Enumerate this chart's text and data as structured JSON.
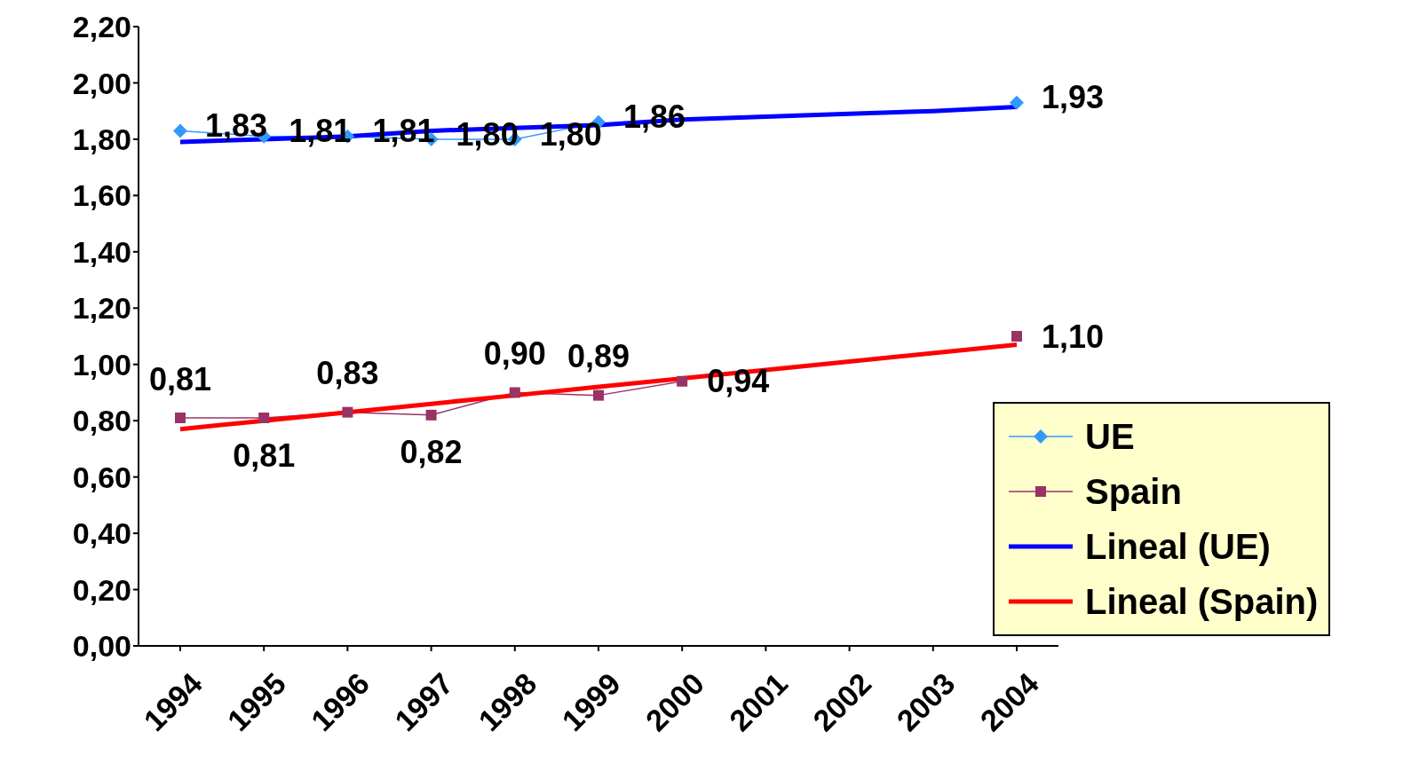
{
  "chart_data": {
    "type": "line",
    "categories": [
      "1994",
      "1995",
      "1996",
      "1997",
      "1998",
      "1999",
      "2000",
      "2001",
      "2002",
      "2003",
      "2004"
    ],
    "series": [
      {
        "name": "UE",
        "color": "#3399ff",
        "marker": "diamond",
        "values": [
          1.83,
          1.81,
          1.81,
          1.8,
          1.8,
          1.86,
          null,
          null,
          null,
          null,
          1.93
        ],
        "value_labels": [
          "1,83",
          "1,81",
          "1,81",
          "1,80",
          "1,80",
          "1,86",
          null,
          null,
          null,
          null,
          "1,93"
        ]
      },
      {
        "name": "Spain",
        "color": "#993366",
        "marker": "square",
        "values": [
          0.81,
          0.81,
          0.83,
          0.82,
          0.9,
          0.89,
          0.94,
          null,
          null,
          null,
          1.1
        ],
        "value_labels": [
          "0,81",
          "0,81",
          "0,83",
          "0,82",
          "0,90",
          "0,89",
          "0,94",
          null,
          null,
          null,
          "1,10"
        ]
      },
      {
        "name": "Lineal (UE)",
        "color": "#0000ff",
        "marker": "none",
        "values": [
          1.79,
          1.8,
          1.81,
          1.83,
          1.84,
          1.85,
          1.87,
          1.88,
          1.89,
          1.9,
          1.915
        ]
      },
      {
        "name": "Lineal (Spain)",
        "color": "#ff0000",
        "marker": "none",
        "values": [
          0.77,
          0.8,
          0.83,
          0.86,
          0.89,
          0.92,
          0.95,
          0.98,
          1.01,
          1.04,
          1.07
        ]
      }
    ],
    "ylim": [
      0,
      2.2
    ],
    "yticks": [
      {
        "value": 0,
        "label": "0,00"
      },
      {
        "value": 0.2,
        "label": "0,20"
      },
      {
        "value": 0.4,
        "label": "0,40"
      },
      {
        "value": 0.6,
        "label": "0,60"
      },
      {
        "value": 0.8,
        "label": "0,80"
      },
      {
        "value": 1,
        "label": "1,00"
      },
      {
        "value": 1.2,
        "label": "1,20"
      },
      {
        "value": 1.4,
        "label": "1,40"
      },
      {
        "value": 1.6,
        "label": "1,60"
      },
      {
        "value": 1.8,
        "label": "1,80"
      },
      {
        "value": 2,
        "label": "2,00"
      },
      {
        "value": 2.2,
        "label": "2,20"
      }
    ],
    "grid": false,
    "legend": "bottom right"
  }
}
